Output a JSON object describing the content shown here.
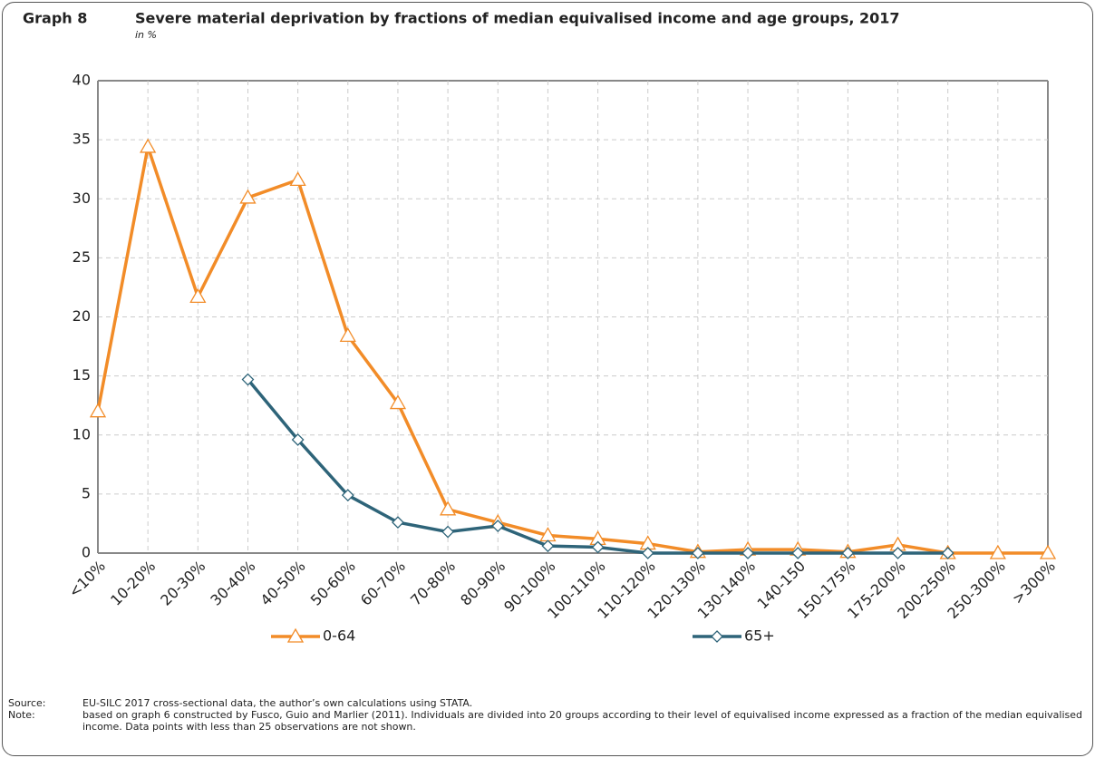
{
  "chart_data": {
    "type": "line",
    "label": "Graph 8",
    "title": "Severe material deprivation by fractions of median equivalised income and age groups, 2017",
    "subtitle": "in %",
    "categories": [
      "<10%",
      "10-20%",
      "20-30%",
      "30-40%",
      "40-50%",
      "50-60%",
      "60-70%",
      "70-80%",
      "80-90%",
      "90-100%",
      "100-110%",
      "110-120%",
      "120-130%",
      "130-140%",
      "140-150",
      "150-175%",
      "175-200%",
      "200-250%",
      "250-300%",
      ">300%"
    ],
    "series": [
      {
        "name": "0-64",
        "color": "#f28c28",
        "marker": "triangle",
        "values": [
          12,
          34.4,
          21.7,
          30.1,
          31.6,
          18.4,
          12.7,
          3.7,
          2.6,
          1.5,
          1.2,
          0.8,
          0.1,
          0.3,
          0.3,
          0.1,
          0.7,
          0,
          0,
          0
        ]
      },
      {
        "name": "65+",
        "color": "#2e6479",
        "marker": "diamond",
        "values": [
          null,
          null,
          null,
          14.7,
          9.6,
          4.9,
          2.6,
          1.8,
          2.3,
          0.6,
          0.5,
          0,
          0,
          0,
          0,
          0,
          0,
          0,
          null,
          null
        ]
      }
    ],
    "ylim": [
      0,
      40
    ],
    "yticks": [
      0,
      5,
      10,
      15,
      20,
      25,
      30,
      35,
      40
    ],
    "grid": true,
    "source_label": "Source:",
    "source": "EU-SILC 2017 cross-sectional data, the author’s own calculations using STATA.",
    "note_label": "Note:",
    "note": "based on graph 6 constructed by Fusco, Guio and Marlier (2011). Individuals are divided into 20 groups according to their level of equivalised income expressed as a fraction of the median equivalised income. Data points with less than 25 observations are not shown."
  }
}
